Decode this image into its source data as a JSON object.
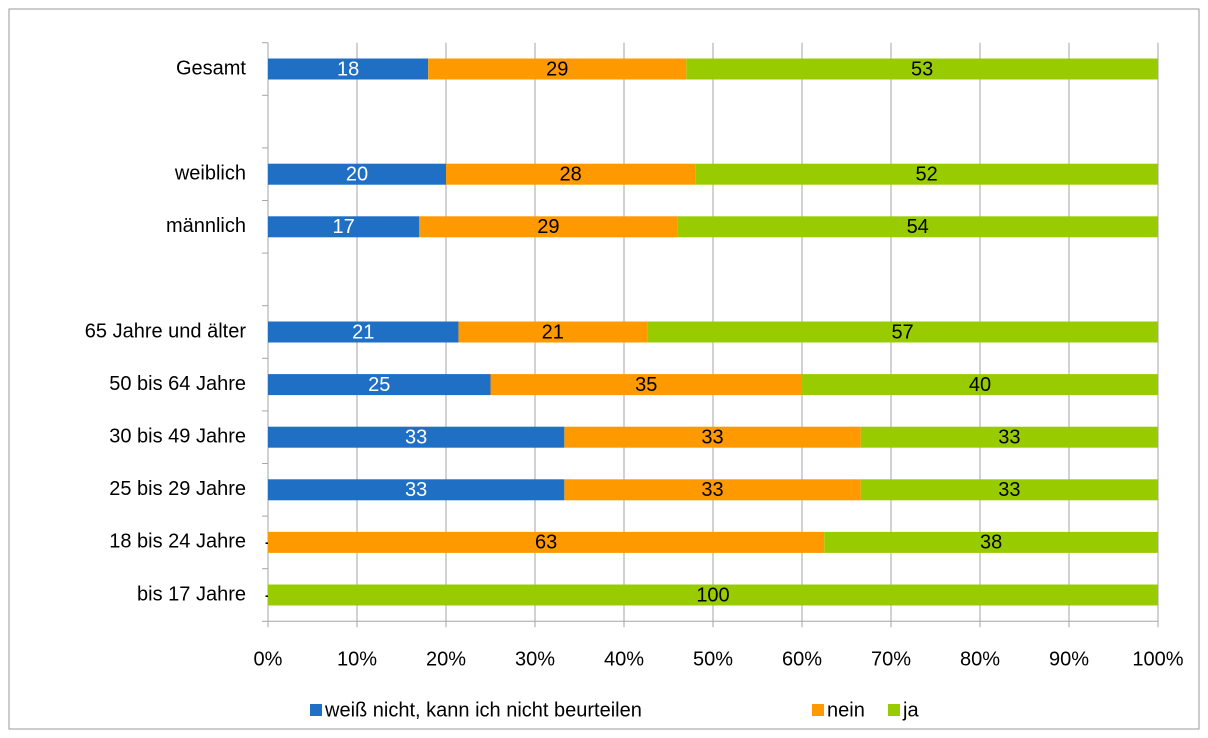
{
  "chart_data": {
    "type": "stacked_barh",
    "categories": [
      "Gesamt",
      null,
      "weiblich",
      "männlich",
      null,
      "65 Jahre und älter",
      "50 bis 64 Jahre",
      "30 bis 49 Jahre",
      "25 bis 29 Jahre",
      "18 bis 24 Jahre",
      "bis 17 Jahre"
    ],
    "series": [
      {
        "name": "weiß nicht, kann ich nicht beurteilen",
        "color": "#1f6fc5",
        "label_color": "#ffffff",
        "values": [
          18,
          null,
          20,
          17,
          null,
          21.4,
          25,
          33.3,
          33.3,
          0,
          0
        ],
        "value_labels": [
          "18",
          null,
          "20",
          "17",
          null,
          "21",
          "25",
          "33",
          "33",
          "-",
          "-"
        ]
      },
      {
        "name": "nein",
        "color": "#ff9900",
        "label_color": "#000000",
        "values": [
          29,
          null,
          28,
          29,
          null,
          21.2,
          35,
          33.3,
          33.3,
          62.5,
          0
        ],
        "value_labels": [
          "29",
          null,
          "28",
          "29",
          null,
          "21",
          "35",
          "33",
          "33",
          "63",
          null
        ]
      },
      {
        "name": "ja",
        "color": "#99cc00",
        "label_color": "#000000",
        "values": [
          53,
          null,
          52,
          54,
          null,
          57.4,
          40,
          33.4,
          33.4,
          37.5,
          100
        ],
        "value_labels": [
          "53",
          null,
          "52",
          "54",
          null,
          "57",
          "40",
          "33",
          "33",
          "38",
          "100"
        ]
      }
    ],
    "xlim": [
      0,
      100
    ],
    "xticks": [
      {
        "value": 0,
        "label": "0%"
      },
      {
        "value": 10,
        "label": "10%"
      },
      {
        "value": 20,
        "label": "20%"
      },
      {
        "value": 30,
        "label": "30%"
      },
      {
        "value": 40,
        "label": "40%"
      },
      {
        "value": 50,
        "label": "50%"
      },
      {
        "value": 60,
        "label": "60%"
      },
      {
        "value": 70,
        "label": "70%"
      },
      {
        "value": 80,
        "label": "80%"
      },
      {
        "value": 90,
        "label": "90%"
      },
      {
        "value": 100,
        "label": "100%"
      }
    ],
    "grid": true,
    "legend": "bottom"
  }
}
